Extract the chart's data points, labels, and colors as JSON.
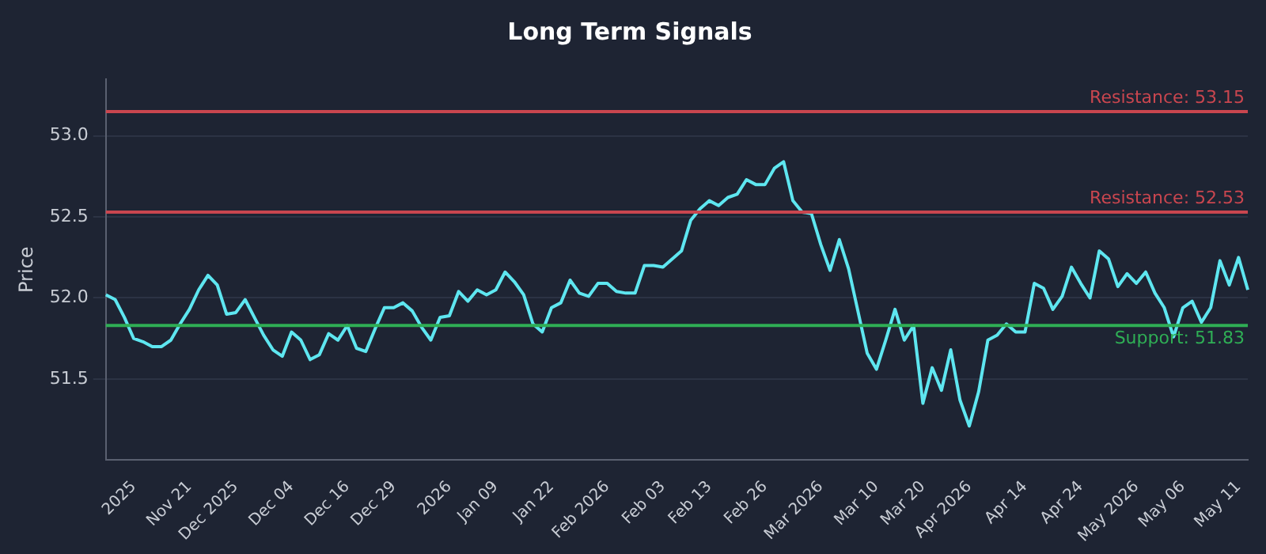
{
  "chart_data": {
    "type": "line",
    "title": "Long Term Signals",
    "ylabel": "Price",
    "categories": [
      null,
      null,
      null,
      "2025",
      null,
      null,
      null,
      null,
      null,
      "Nov 21",
      null,
      null,
      null,
      null,
      "Dec 2025",
      null,
      null,
      null,
      null,
      null,
      "Dec 04",
      null,
      null,
      null,
      null,
      null,
      "Dec 16",
      null,
      null,
      null,
      null,
      "Dec 29",
      null,
      null,
      null,
      null,
      null,
      "2026",
      null,
      null,
      null,
      null,
      "Jan 09",
      null,
      null,
      null,
      null,
      null,
      "Jan 22",
      null,
      null,
      null,
      null,
      null,
      "Feb 2026",
      null,
      null,
      null,
      null,
      null,
      "Feb 03",
      null,
      null,
      null,
      null,
      "Feb 13",
      null,
      null,
      null,
      null,
      null,
      "Feb 26",
      null,
      null,
      null,
      null,
      null,
      "Mar 2026",
      null,
      null,
      null,
      null,
      null,
      "Mar 10",
      null,
      null,
      null,
      null,
      "Mar 20",
      null,
      null,
      null,
      null,
      "Apr 2026",
      null,
      null,
      null,
      null,
      null,
      "Apr 14",
      null,
      null,
      null,
      null,
      null,
      "Apr 24",
      null,
      null,
      null,
      null,
      null,
      "May 2026",
      null,
      null,
      null,
      null,
      "May 06",
      null,
      null,
      null,
      null,
      null,
      "May 11",
      null
    ],
    "series": [
      {
        "color": "#5ee6f0",
        "values": [
          52.02,
          51.99,
          51.88,
          51.75,
          51.73,
          51.7,
          51.7,
          51.74,
          51.84,
          51.93,
          52.05,
          52.14,
          52.08,
          51.9,
          51.91,
          51.99,
          51.88,
          51.77,
          51.68,
          51.64,
          51.79,
          51.74,
          51.62,
          51.65,
          51.78,
          51.74,
          51.83,
          51.69,
          51.67,
          51.81,
          51.94,
          51.94,
          51.97,
          51.92,
          51.82,
          51.74,
          51.88,
          51.89,
          52.04,
          51.98,
          52.05,
          52.02,
          52.05,
          52.16,
          52.1,
          52.02,
          51.84,
          51.79,
          51.94,
          51.97,
          52.11,
          52.03,
          52.01,
          52.09,
          52.09,
          52.04,
          52.03,
          52.03,
          52.2,
          52.2,
          52.19,
          52.24,
          52.29,
          52.48,
          52.55,
          52.6,
          52.57,
          52.62,
          52.64,
          52.73,
          52.7,
          52.7,
          52.8,
          52.84,
          52.6,
          52.53,
          52.52,
          52.33,
          52.17,
          52.36,
          52.18,
          51.92,
          51.66,
          51.56,
          51.74,
          51.93,
          51.74,
          51.83,
          51.35,
          51.57,
          51.43,
          51.68,
          51.37,
          51.21,
          51.42,
          51.74,
          51.77,
          51.84,
          51.79,
          51.79,
          52.09,
          52.06,
          51.93,
          52.01,
          52.19,
          52.09,
          52.0,
          52.29,
          52.24,
          52.07,
          52.15,
          52.09,
          52.16,
          52.03,
          51.94,
          51.76,
          51.94,
          51.98,
          51.85,
          51.94,
          52.23,
          52.08,
          52.25,
          52.05
        ]
      }
    ],
    "ylim": [
      51.0,
      53.35
    ],
    "yticks": [
      {
        "value": 51.5,
        "label": "51.5"
      },
      {
        "value": 52,
        "label": "52.0"
      },
      {
        "value": 52.5,
        "label": "52.5"
      },
      {
        "value": 53,
        "label": "53.0"
      }
    ],
    "grid": "y",
    "legend": false,
    "marker": "none",
    "line_style": "solid",
    "ref_lines": [
      {
        "axis": "y",
        "value": 53.15,
        "label": "Resistance: 53.15",
        "color": "#c9464f"
      },
      {
        "axis": "y",
        "value": 52.53,
        "label": "Resistance: 52.53",
        "color": "#c9464f"
      },
      {
        "axis": "y",
        "value": 51.83,
        "label": "Support: 51.83",
        "color": "#2fae55"
      }
    ]
  }
}
